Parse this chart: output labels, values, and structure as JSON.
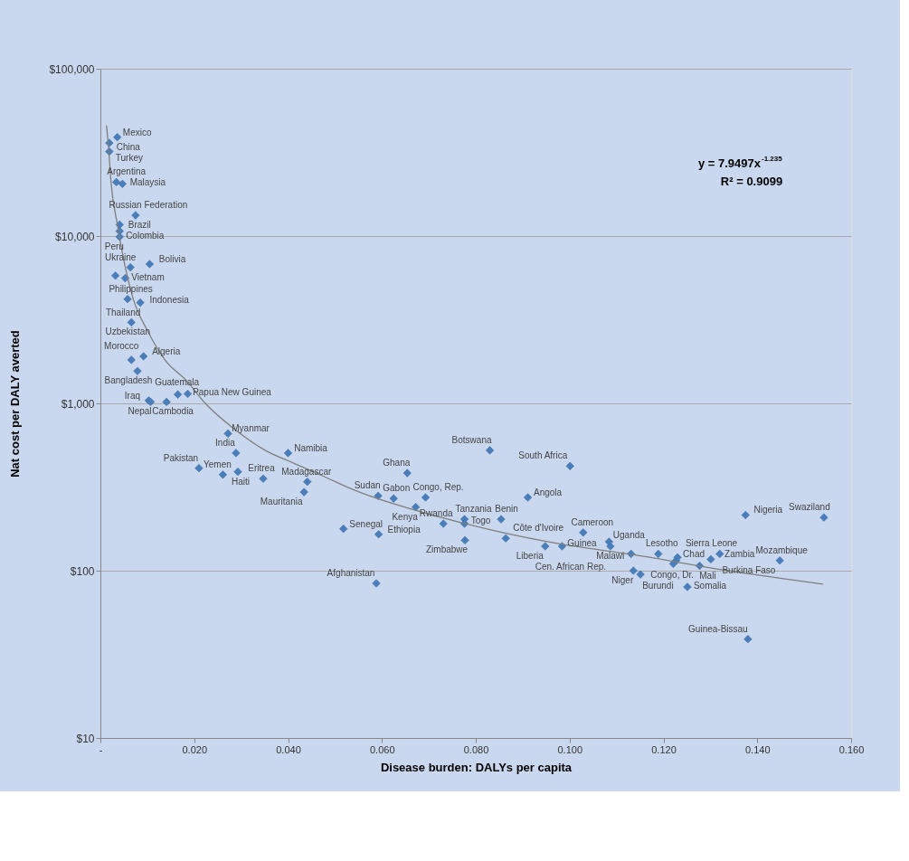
{
  "chart_data": {
    "type": "scatter",
    "xlabel": "Disease burden: DALYs per capita",
    "ylabel": "Nat cost per DALY averted",
    "xlim": [
      0,
      0.16
    ],
    "ylim": [
      10,
      100000
    ],
    "log": "y",
    "grid": "y",
    "xticks": [
      {
        "value": 0,
        "label": "-"
      },
      {
        "value": 0.02,
        "label": "0.020"
      },
      {
        "value": 0.04,
        "label": "0.040"
      },
      {
        "value": 0.06,
        "label": "0.060"
      },
      {
        "value": 0.08,
        "label": "0.080"
      },
      {
        "value": 0.1,
        "label": "0.100"
      },
      {
        "value": 0.12,
        "label": "0.120"
      },
      {
        "value": 0.14,
        "label": "0.140"
      },
      {
        "value": 0.16,
        "label": "0.160"
      }
    ],
    "yticks": [
      {
        "value": 10,
        "label": "$10"
      },
      {
        "value": 100,
        "label": "$100"
      },
      {
        "value": 1000,
        "label": "$1,000"
      },
      {
        "value": 10000,
        "label": "$10,000"
      },
      {
        "value": 100000,
        "label": "$100,000"
      }
    ],
    "series": [
      {
        "marker": "diamond",
        "color": "#4a7ebb",
        "x": [
          0.0036,
          0.0019,
          0.0019,
          0.0034,
          0.0047,
          0.0075,
          0.0041,
          0.0041,
          0.0041,
          0.0105,
          0.0064,
          0.0032,
          0.0053,
          0.0058,
          0.0085,
          0.0066,
          0.0092,
          0.0066,
          0.0079,
          0.0103,
          0.0107,
          0.0141,
          0.0165,
          0.0186,
          0.0272,
          0.0289,
          0.0293,
          0.0261,
          0.021,
          0.0347,
          0.04,
          0.0441,
          0.0434,
          0.0518,
          0.0593,
          0.0588,
          0.0592,
          0.0625,
          0.0654,
          0.0693,
          0.0672,
          0.0731,
          0.0776,
          0.0776,
          0.0777,
          0.083,
          0.0911,
          0.0854,
          0.0864,
          0.0948,
          0.1001,
          0.0984,
          0.1029,
          0.1084,
          0.1087,
          0.1131,
          0.1136,
          0.1151,
          0.1189,
          0.1227,
          0.1221,
          0.123,
          0.1277,
          0.1301,
          0.132,
          0.1251,
          0.1375,
          0.1542,
          0.1448,
          0.138
        ],
        "values": [
          39000,
          36000,
          32000,
          21000,
          20500,
          13300,
          11700,
          10700,
          9900,
          6800,
          6500,
          5800,
          5600,
          4200,
          4000,
          3050,
          1910,
          1820,
          1560,
          1040,
          1020,
          1020,
          1130,
          1140,
          660,
          505,
          390,
          375,
          410,
          355,
          505,
          340,
          295,
          178,
          165,
          84,
          280,
          270,
          383,
          274,
          240,
          191,
          203,
          191,
          152,
          524,
          274,
          203,
          156,
          140,
          422,
          140,
          169,
          149,
          140,
          126,
          100,
          95,
          126,
          115,
          110,
          120,
          107,
          117,
          126,
          80,
          215,
          208,
          115,
          39
        ]
      },
      {
        "type": "line",
        "line_style": "solid",
        "color": "#7f7f7f",
        "x": [
          0.0013,
          0.0017,
          0.0023,
          0.0036,
          0.0047,
          0.0069,
          0.0101,
          0.0139,
          0.0182,
          0.0225,
          0.0289,
          0.0351,
          0.0413,
          0.0477,
          0.0539,
          0.0727,
          0.0853,
          0.0977,
          0.114,
          0.1328,
          0.154
        ],
        "values": [
          45800,
          34800,
          20500,
          11800,
          7900,
          4300,
          2700,
          1800,
          1380,
          990,
          690,
          524,
          438,
          365,
          305,
          208,
          170,
          145,
          124,
          101,
          83
        ]
      }
    ],
    "annotations": [
      "y = 7.9497x$^{-1.235}$",
      "R² = 0.9099",
      {
        "text": "Mexico",
        "x": 0.0036,
        "y": 39000
      },
      {
        "text": "China",
        "x": 0.0019,
        "y": 36000
      },
      {
        "text": "Turkey",
        "x": 0.0019,
        "y": 32000
      },
      {
        "text": "Argentina",
        "x": 0.0034,
        "y": 21000
      },
      {
        "text": "Malaysia",
        "x": 0.0047,
        "y": 20500
      },
      {
        "text": "Russian Federation",
        "x": 0.0075,
        "y": 13300
      },
      {
        "text": "Brazil",
        "x": 0.0041,
        "y": 11700
      },
      {
        "text": "Colombia",
        "x": 0.0041,
        "y": 10700
      },
      {
        "text": "Peru",
        "x": 0.0041,
        "y": 9900
      },
      {
        "text": "Bolivia",
        "x": 0.0105,
        "y": 6800
      },
      {
        "text": "Ukraine",
        "x": 0.0064,
        "y": 6500
      },
      {
        "text": "Philippines",
        "x": 0.0032,
        "y": 5800
      },
      {
        "text": "Vietnam",
        "x": 0.0053,
        "y": 5600
      },
      {
        "text": "Thailand",
        "x": 0.0058,
        "y": 4200
      },
      {
        "text": "Indonesia",
        "x": 0.0085,
        "y": 4000
      },
      {
        "text": "Uzbekistan",
        "x": 0.0066,
        "y": 3050
      },
      {
        "text": "Algeria",
        "x": 0.0092,
        "y": 1910
      },
      {
        "text": "Morocco",
        "x": 0.0066,
        "y": 1820
      },
      {
        "text": "Bangladesh",
        "x": 0.0079,
        "y": 1560
      },
      {
        "text": "Iraq",
        "x": 0.0103,
        "y": 1040
      },
      {
        "text": "Nepal",
        "x": 0.0107,
        "y": 1020
      },
      {
        "text": "Cambodia",
        "x": 0.0141,
        "y": 1020
      },
      {
        "text": "Guatemala",
        "x": 0.0165,
        "y": 1130
      },
      {
        "text": "Papua New Guinea",
        "x": 0.0186,
        "y": 1140
      },
      {
        "text": "Myanmar",
        "x": 0.0272,
        "y": 660
      },
      {
        "text": "India",
        "x": 0.0289,
        "y": 505
      },
      {
        "text": "Haiti",
        "x": 0.0293,
        "y": 390
      },
      {
        "text": "Yemen",
        "x": 0.0261,
        "y": 375
      },
      {
        "text": "Pakistan",
        "x": 0.021,
        "y": 410
      },
      {
        "text": "Eritrea",
        "x": 0.0347,
        "y": 355
      },
      {
        "text": "Namibia",
        "x": 0.04,
        "y": 505
      },
      {
        "text": "Madagascar",
        "x": 0.0441,
        "y": 340
      },
      {
        "text": "Mauritania",
        "x": 0.0434,
        "y": 295
      },
      {
        "text": "Senegal",
        "x": 0.0518,
        "y": 178
      },
      {
        "text": "Ethiopia",
        "x": 0.0593,
        "y": 165
      },
      {
        "text": "Afghanistan",
        "x": 0.0588,
        "y": 84
      },
      {
        "text": "Sudan",
        "x": 0.0592,
        "y": 280
      },
      {
        "text": "Gabon",
        "x": 0.0625,
        "y": 270
      },
      {
        "text": "Ghana",
        "x": 0.0654,
        "y": 383
      },
      {
        "text": "Congo, Rep.",
        "x": 0.0693,
        "y": 274
      },
      {
        "text": "Kenya",
        "x": 0.0672,
        "y": 240
      },
      {
        "text": "Rwanda",
        "x": 0.0731,
        "y": 191
      },
      {
        "text": "Tanzania",
        "x": 0.0776,
        "y": 203
      },
      {
        "text": "Togo",
        "x": 0.0776,
        "y": 191
      },
      {
        "text": "Zimbabwe",
        "x": 0.0777,
        "y": 152
      },
      {
        "text": "Botswana",
        "x": 0.083,
        "y": 524
      },
      {
        "text": "Angola",
        "x": 0.0911,
        "y": 274
      },
      {
        "text": "Benin",
        "x": 0.0854,
        "y": 203
      },
      {
        "text": "Côte d'Ivoire",
        "x": 0.0864,
        "y": 156
      },
      {
        "text": "Liberia",
        "x": 0.0948,
        "y": 140
      },
      {
        "text": "South Africa",
        "x": 0.1001,
        "y": 422
      },
      {
        "text": "Guinea",
        "x": 0.0984,
        "y": 140
      },
      {
        "text": "Cameroon",
        "x": 0.1029,
        "y": 169
      },
      {
        "text": "Uganda",
        "x": 0.1084,
        "y": 149
      },
      {
        "text": "Cen. African Rep.",
        "x": 0.1087,
        "y": 140
      },
      {
        "text": "Malawi",
        "x": 0.1131,
        "y": 126
      },
      {
        "text": "Niger",
        "x": 0.1136,
        "y": 100
      },
      {
        "text": "Congo, Dr.",
        "x": 0.1151,
        "y": 95
      },
      {
        "text": "Lesotho",
        "x": 0.1189,
        "y": 126
      },
      {
        "text": "Sierra Leone",
        "x": 0.1227,
        "y": 115
      },
      {
        "text": "Burundi",
        "x": 0.1221,
        "y": 110
      },
      {
        "text": "Chad",
        "x": 0.123,
        "y": 120
      },
      {
        "text": "Mali",
        "x": 0.1277,
        "y": 107
      },
      {
        "text": "Burkina Faso",
        "x": 0.1301,
        "y": 117
      },
      {
        "text": "Zambia",
        "x": 0.132,
        "y": 126
      },
      {
        "text": "Somalia",
        "x": 0.1251,
        "y": 80
      },
      {
        "text": "Nigeria",
        "x": 0.1375,
        "y": 215
      },
      {
        "text": "Swaziland",
        "x": 0.1542,
        "y": 208
      },
      {
        "text": "Mozambique",
        "x": 0.1448,
        "y": 115
      },
      {
        "text": "Guinea-Bissau",
        "x": 0.138,
        "y": 39
      }
    ]
  }
}
